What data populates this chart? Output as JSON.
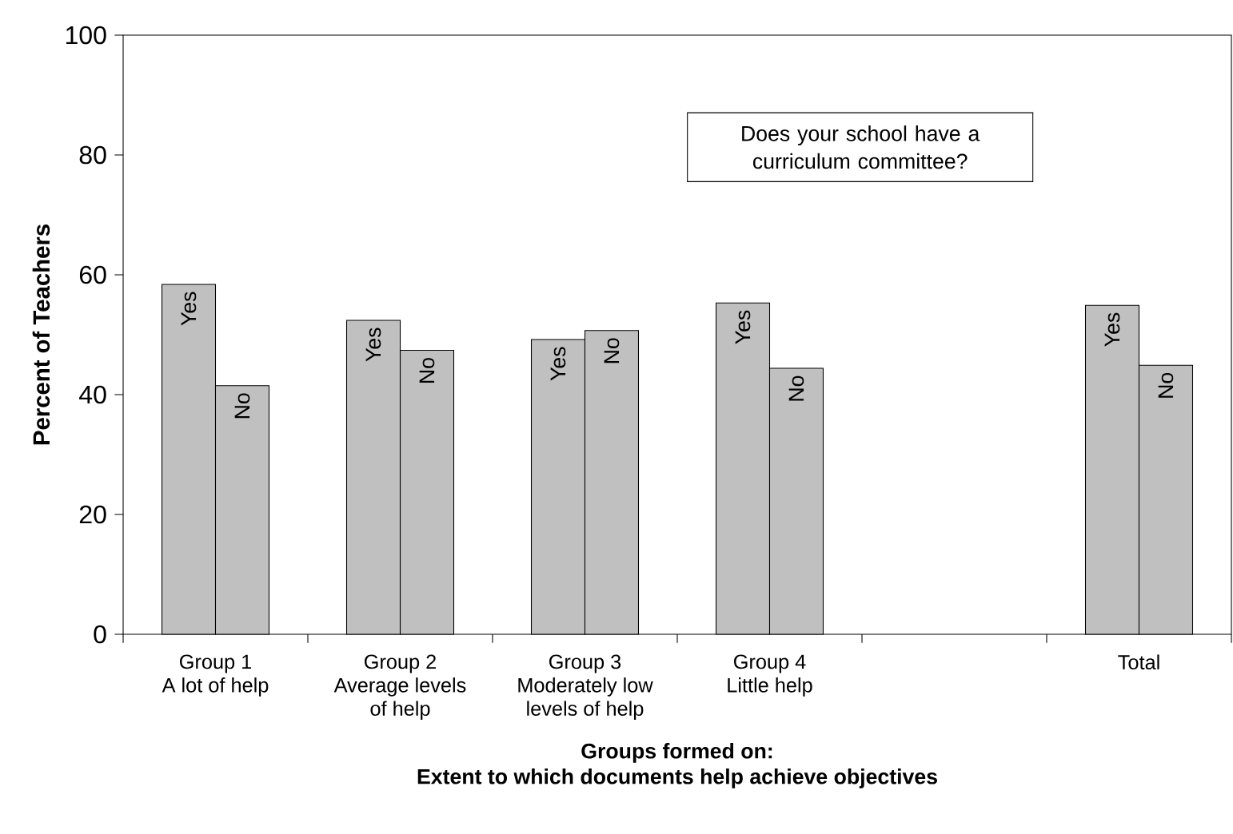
{
  "chart_data": {
    "type": "bar",
    "categories": [
      "Group 1\nA lot of help",
      "Group 2\nAverage levels\nof help",
      "Group 3\nModerately low\nlevels of help",
      "Group 4\nLittle help",
      null,
      "Total"
    ],
    "series": [
      {
        "name": "Yes",
        "color": "#c0c0c0",
        "values": [
          58.4,
          52.4,
          49.2,
          55.3,
          null,
          54.9
        ]
      },
      {
        "name": "No",
        "color": "#c0c0c0",
        "values": [
          41.5,
          47.4,
          50.7,
          44.4,
          null,
          44.9
        ]
      }
    ],
    "xlabel": "Groups formed on:\nExtent to which documents help achieve objectives",
    "ylabel": "Percent of Teachers",
    "ylim": [
      0,
      100
    ],
    "yticks": [
      0,
      20,
      40,
      60,
      80,
      100
    ],
    "annotations": [
      "Does your school have a curriculum committee?"
    ],
    "grid": false
  }
}
